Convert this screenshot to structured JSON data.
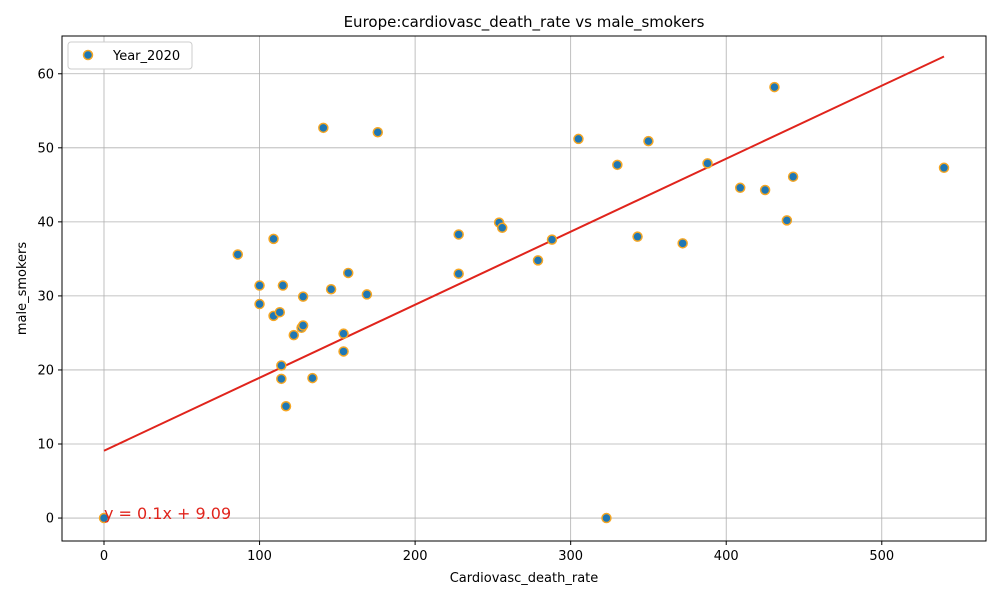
{
  "chart_data": {
    "type": "scatter",
    "title": "Europe:cardiovasc_death_rate vs male_smokers",
    "xlabel": "Cardiovasc_death_rate",
    "ylabel": "male_smokers",
    "xlim": [
      -27,
      567
    ],
    "ylim": [
      -3.1,
      65.1
    ],
    "xticks": [
      0,
      100,
      200,
      300,
      400,
      500
    ],
    "yticks": [
      0,
      10,
      20,
      30,
      40,
      50,
      60
    ],
    "grid": true,
    "legend_position": "top-left",
    "series": [
      {
        "name": "Year_2020",
        "marker_fill": "#1f77b4",
        "marker_edge": "#f5a623",
        "points": [
          [
            0,
            0
          ],
          [
            86,
            35.6
          ],
          [
            100,
            31.4
          ],
          [
            100,
            28.9
          ],
          [
            109,
            37.7
          ],
          [
            109,
            27.3
          ],
          [
            113,
            27.8
          ],
          [
            115,
            31.4
          ],
          [
            114,
            20.6
          ],
          [
            114,
            18.8
          ],
          [
            117,
            15.1
          ],
          [
            122,
            24.7
          ],
          [
            127,
            25.7
          ],
          [
            128,
            26.0
          ],
          [
            128,
            29.9
          ],
          [
            134,
            18.9
          ],
          [
            141,
            52.7
          ],
          [
            146,
            30.9
          ],
          [
            154,
            24.9
          ],
          [
            154,
            22.5
          ],
          [
            157,
            33.1
          ],
          [
            169,
            30.2
          ],
          [
            176,
            52.1
          ],
          [
            228,
            33.0
          ],
          [
            228,
            38.3
          ],
          [
            254,
            39.9
          ],
          [
            256,
            39.2
          ],
          [
            279,
            34.8
          ],
          [
            288,
            37.6
          ],
          [
            305,
            51.2
          ],
          [
            323,
            0
          ],
          [
            330,
            47.7
          ],
          [
            343,
            38.0
          ],
          [
            350,
            50.9
          ],
          [
            372,
            37.1
          ],
          [
            388,
            47.9
          ],
          [
            409,
            44.6
          ],
          [
            425,
            44.3
          ],
          [
            431,
            58.2
          ],
          [
            439,
            40.2
          ],
          [
            443,
            46.1
          ],
          [
            540,
            47.3
          ]
        ]
      }
    ],
    "trendline": {
      "color": "#e0241c",
      "slope": 0.0986,
      "intercept": 9.09,
      "x_range": [
        0,
        540
      ],
      "equation": "y = 0.1x + 9.09",
      "label_at": [
        0,
        0
      ]
    }
  }
}
